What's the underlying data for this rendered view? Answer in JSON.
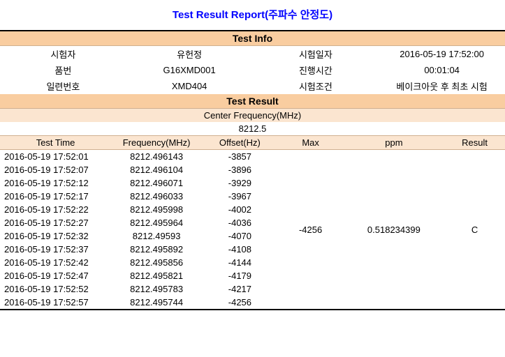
{
  "title": "Test Result Report(주파수 안정도)",
  "sections": {
    "test_info_header": "Test Info",
    "test_result_header": "Test Result",
    "center_freq_label": "Center Frequency(MHz)",
    "center_freq_value": "8212.5"
  },
  "info": {
    "rows": [
      {
        "l1": "시험자",
        "v1": "유헌정",
        "l2": "시험일자",
        "v2": "2016-05-19 17:52:00"
      },
      {
        "l1": "품번",
        "v1": "G16XMD001",
        "l2": "진행시간",
        "v2": "00:01:04"
      },
      {
        "l1": "일련번호",
        "v1": "XMD404",
        "l2": "시험조건",
        "v2": "베이크아웃 후 최초 시험"
      }
    ]
  },
  "columns": {
    "c0": "Test Time",
    "c1": "Frequency(MHz)",
    "c2": "Offset(Hz)",
    "c3": "Max",
    "c4": "ppm",
    "c5": "Result"
  },
  "summary": {
    "max": "-4256",
    "ppm": "0.518234399",
    "result": "C"
  },
  "rows": [
    {
      "t": "2016-05-19 17:52:01",
      "f": "8212.496143",
      "o": "-3857"
    },
    {
      "t": "2016-05-19 17:52:07",
      "f": "8212.496104",
      "o": "-3896"
    },
    {
      "t": "2016-05-19 17:52:12",
      "f": "8212.496071",
      "o": "-3929"
    },
    {
      "t": "2016-05-19 17:52:17",
      "f": "8212.496033",
      "o": "-3967"
    },
    {
      "t": "2016-05-19 17:52:22",
      "f": "8212.495998",
      "o": "-4002"
    },
    {
      "t": "2016-05-19 17:52:27",
      "f": "8212.495964",
      "o": "-4036"
    },
    {
      "t": "2016-05-19 17:52:32",
      "f": "8212.49593",
      "o": "-4070"
    },
    {
      "t": "2016-05-19 17:52:37",
      "f": "8212.495892",
      "o": "-4108"
    },
    {
      "t": "2016-05-19 17:52:42",
      "f": "8212.495856",
      "o": "-4144"
    },
    {
      "t": "2016-05-19 17:52:47",
      "f": "8212.495821",
      "o": "-4179"
    },
    {
      "t": "2016-05-19 17:52:52",
      "f": "8212.495783",
      "o": "-4217"
    },
    {
      "t": "2016-05-19 17:52:57",
      "f": "8212.495744",
      "o": "-4256"
    }
  ]
}
